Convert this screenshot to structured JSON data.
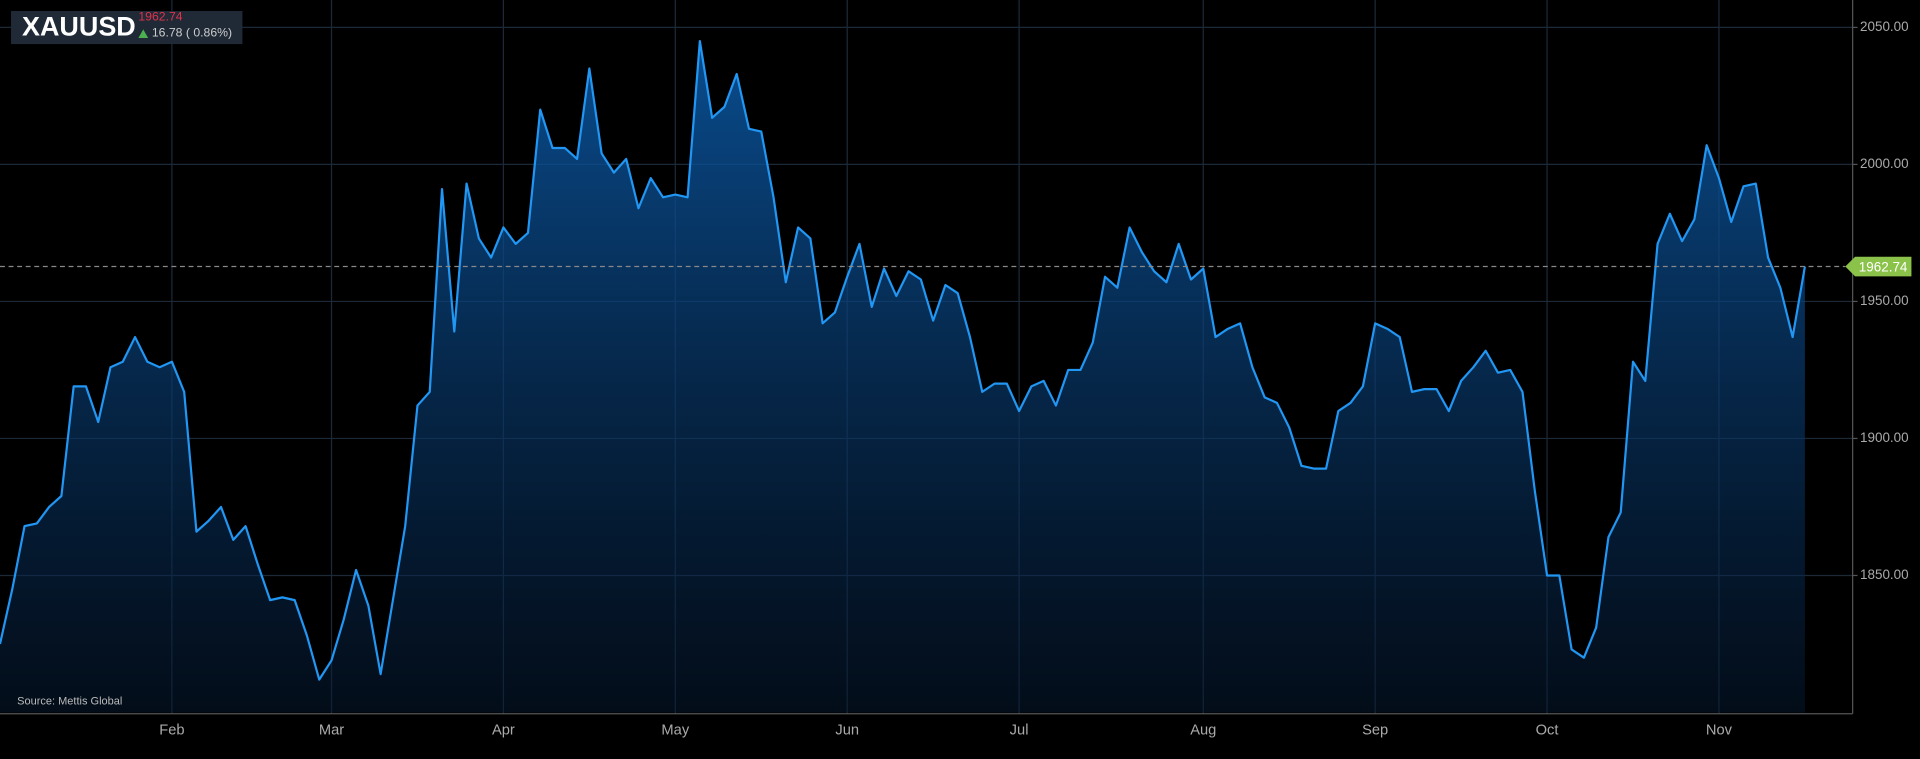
{
  "chart_data": {
    "type": "area",
    "title": "XAUUSD",
    "change_label": "16.78 ( 0.86%)",
    "source": "Source: Mettis Global",
    "color": "#2196f3",
    "up_color": "#4caf50",
    "price_color": "#e0314b",
    "tag_color": "#8bc34a",
    "grid": true,
    "categories": [
      null,
      null,
      null,
      null,
      null,
      null,
      null,
      null,
      null,
      null,
      null,
      null,
      null,
      null,
      "Feb",
      null,
      null,
      null,
      null,
      null,
      null,
      null,
      null,
      null,
      null,
      null,
      null,
      "Mar",
      null,
      null,
      null,
      null,
      null,
      null,
      null,
      null,
      null,
      null,
      null,
      null,
      null,
      "Apr",
      null,
      null,
      null,
      null,
      null,
      null,
      null,
      null,
      null,
      null,
      null,
      null,
      null,
      "May",
      null,
      null,
      null,
      null,
      null,
      null,
      null,
      null,
      null,
      null,
      null,
      null,
      null,
      "Jun",
      null,
      null,
      null,
      null,
      null,
      null,
      null,
      null,
      null,
      null,
      null,
      null,
      null,
      "Jul",
      null,
      null,
      null,
      null,
      null,
      null,
      null,
      null,
      null,
      null,
      null,
      null,
      null,
      null,
      "Aug",
      null,
      null,
      null,
      null,
      null,
      null,
      null,
      null,
      null,
      null,
      null,
      null,
      null,
      "Sep",
      null,
      null,
      null,
      null,
      null,
      null,
      null,
      null,
      null,
      null,
      null,
      null,
      null,
      "Oct",
      null,
      null,
      null,
      null,
      null,
      null,
      null,
      null,
      null,
      null,
      null,
      null,
      null,
      "Nov",
      null,
      null,
      null,
      null,
      null,
      null,
      null
    ],
    "values": [
      1825,
      1845,
      1868,
      1869,
      1875,
      1879,
      1919,
      1919,
      1906,
      1926,
      1928,
      1937,
      1928,
      1926,
      1928,
      1917,
      1866,
      1870,
      1875,
      1863,
      1868,
      1854,
      1841,
      1842,
      1841,
      1828,
      1812,
      1819,
      1834,
      1852,
      1839,
      1814,
      1841,
      1868,
      1912,
      1917,
      1991,
      1939,
      1993,
      1973,
      1966,
      1977,
      1971,
      1975,
      2020,
      2006,
      2006,
      2002,
      2035,
      2004,
      1997,
      2002,
      1984,
      1995,
      1988,
      1989,
      1988,
      2045,
      2017,
      2021,
      2033,
      2013,
      2012,
      1988,
      1957,
      1977,
      1973,
      1942,
      1946,
      1959,
      1971,
      1948,
      1962,
      1952,
      1961,
      1958,
      1943,
      1956,
      1953,
      1937,
      1917,
      1920,
      1920,
      1910,
      1919,
      1921,
      1912,
      1925,
      1925,
      1935,
      1959,
      1955,
      1977,
      1968,
      1961,
      1957,
      1971,
      1958,
      1962,
      1937,
      1940,
      1942,
      1926,
      1915,
      1913,
      1904,
      1890,
      1889,
      1889,
      1910,
      1913,
      1919,
      1942,
      1940,
      1937,
      1917,
      1918,
      1918,
      1910,
      1921,
      1926,
      1932,
      1924,
      1925,
      1917,
      1881,
      1850,
      1850,
      1823,
      1820,
      1831,
      1864,
      1873,
      1928,
      1921,
      1971,
      1982,
      1972,
      1980,
      2007,
      1995,
      1979,
      1992,
      1993,
      1966,
      1955,
      1937,
      1962.74
    ],
    "ylim": [
      1800,
      2060
    ],
    "yticks": [
      {
        "value": 1850,
        "label": "1850.00"
      },
      {
        "value": 1900,
        "label": "1900.00"
      },
      {
        "value": 1950,
        "label": "1950.00"
      },
      {
        "value": 2000,
        "label": "2000.00"
      },
      {
        "value": 2050,
        "label": "2050.00"
      }
    ]
  }
}
